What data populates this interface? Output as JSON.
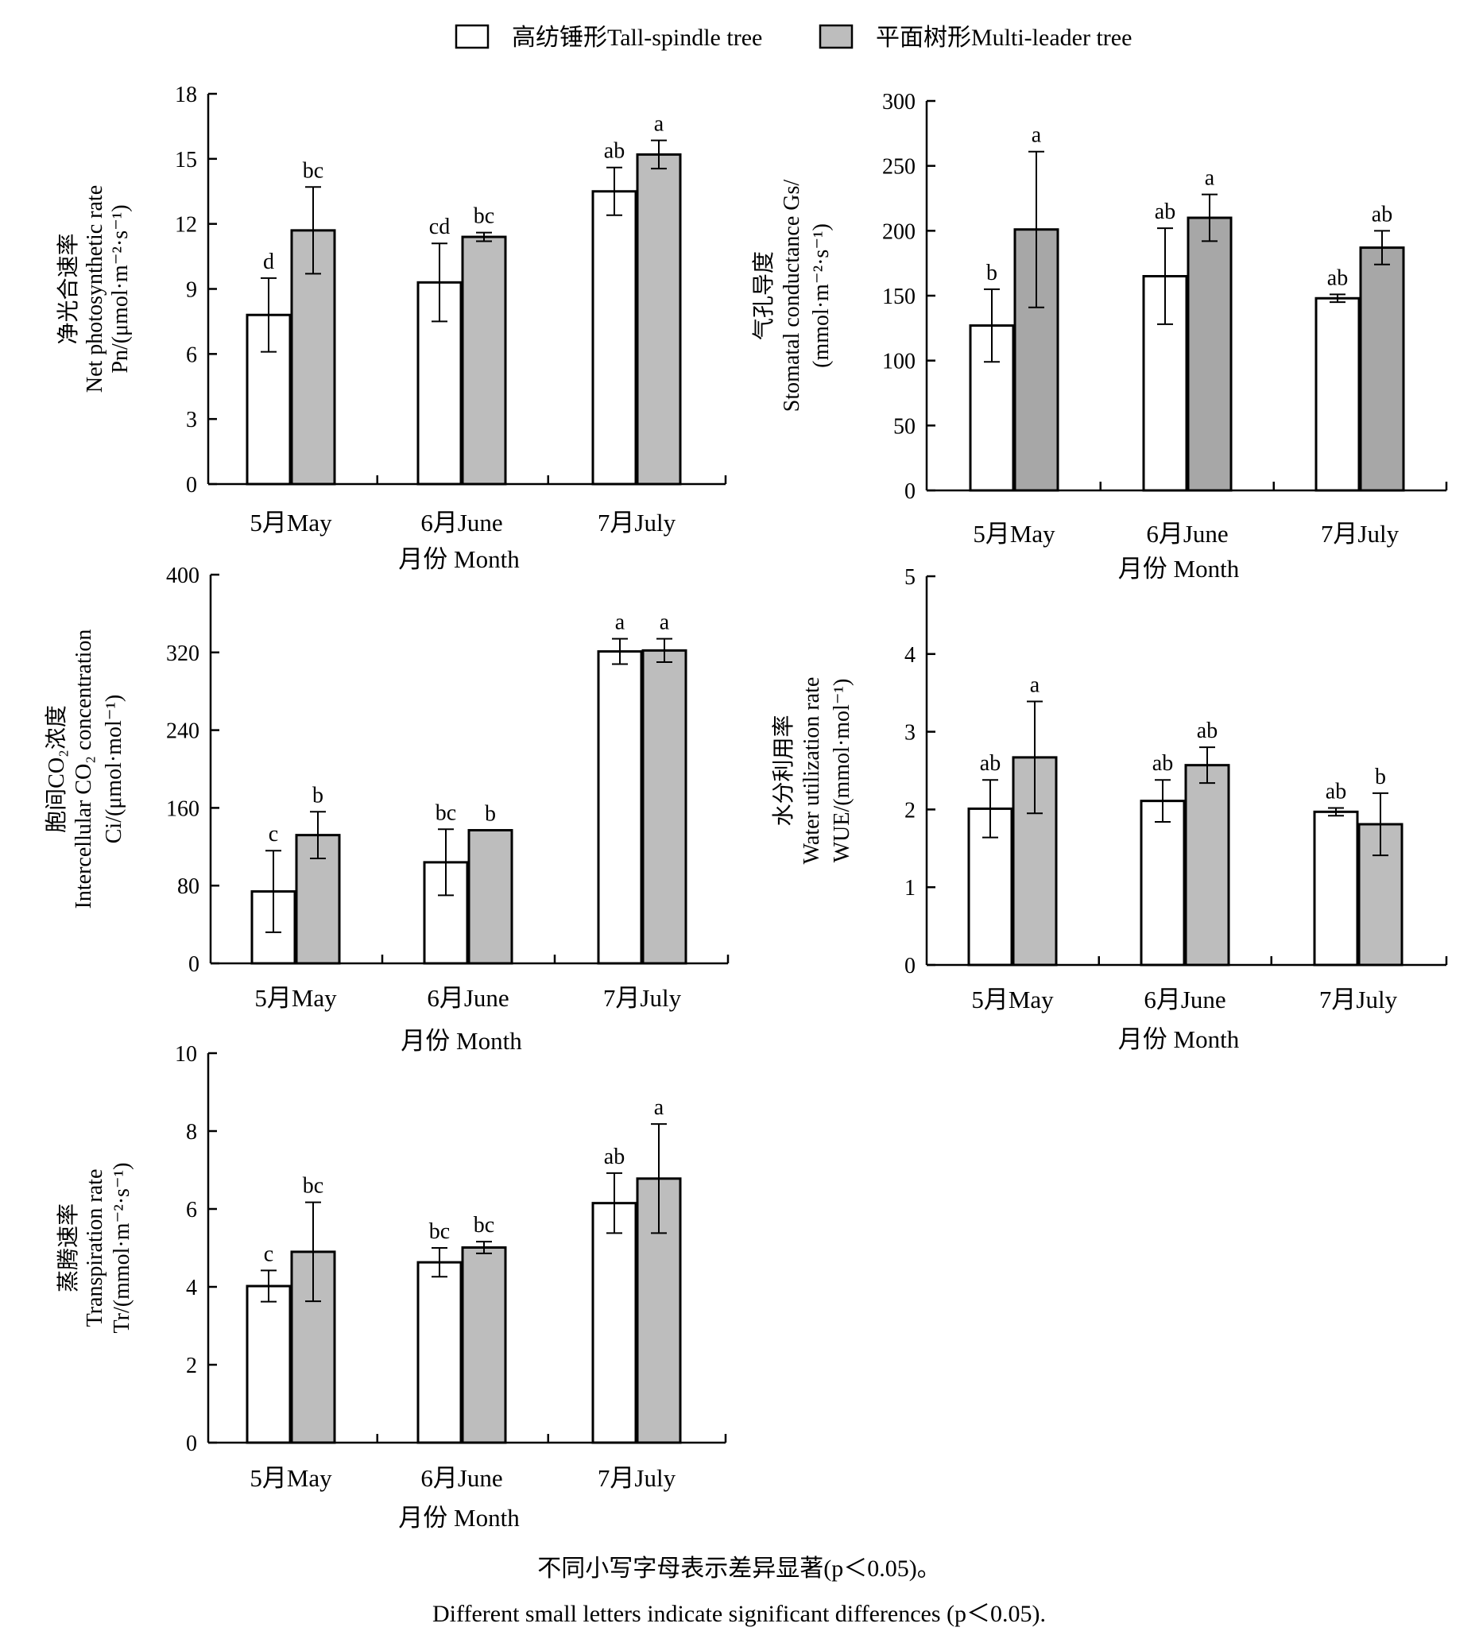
{
  "legend": {
    "items": [
      {
        "label": "高纺锤形Tall-spindle tree",
        "fill": "#ffffff"
      },
      {
        "label": "平面树形Multi-leader tree",
        "fill": "#bdbdbd"
      }
    ]
  },
  "colors": {
    "tall": "#ffffff",
    "multi_light": "#bdbdbd",
    "multi_dark": "#a7a7a7",
    "stroke": "#000000"
  },
  "footnote": {
    "cn": "不同小写字母表示差异显著(p＜0.05)。",
    "en": "Different small letters indicate significant differences (p＜0.05)."
  },
  "chart_data": [
    {
      "id": "pn",
      "type": "bar",
      "ylabel_cn": "净光合速率",
      "ylabel_en": "Net photosynthetic rate",
      "ylabel_unit": "Pn/(μmol·m⁻²·s⁻¹)",
      "xlabel": "月份 Month",
      "categories": [
        "5月May",
        "6月June",
        "7月July"
      ],
      "ylim": [
        0,
        18
      ],
      "yticks": [
        "0",
        "3",
        "6",
        "9",
        "12",
        "15",
        "18"
      ],
      "series": [
        {
          "name": "高纺锤形Tall-spindle tree",
          "values": [
            7.8,
            9.3,
            13.5
          ],
          "errors": [
            1.7,
            1.8,
            1.1
          ],
          "letters": [
            "d",
            "cd",
            "ab"
          ]
        },
        {
          "name": "平面树形Multi-leader tree",
          "values": [
            11.7,
            11.4,
            15.2
          ],
          "errors": [
            2.0,
            0.2,
            0.65
          ],
          "letters": [
            "bc",
            "bc",
            "a"
          ]
        }
      ]
    },
    {
      "id": "gs",
      "type": "bar",
      "ylabel_cn": "气孔导度",
      "ylabel_en": "Stomatal conductance Gs/",
      "ylabel_unit": "(mmol·m⁻²·s⁻¹)",
      "xlabel": "月份 Month",
      "categories": [
        "5月May",
        "6月June",
        "7月July"
      ],
      "ylim": [
        0,
        300
      ],
      "yticks": [
        "0",
        "50",
        "100",
        "150",
        "200",
        "250",
        "300"
      ],
      "series": [
        {
          "name": "高纺锤形Tall-spindle tree",
          "values": [
            127,
            165,
            148
          ],
          "errors": [
            28,
            37,
            3
          ],
          "letters": [
            "b",
            "ab",
            "ab"
          ]
        },
        {
          "name": "平面树形Multi-leader tree",
          "values": [
            201,
            210,
            187
          ],
          "errors": [
            60,
            18,
            13
          ],
          "letters": [
            "a",
            "a",
            "ab"
          ]
        }
      ]
    },
    {
      "id": "ci",
      "type": "bar",
      "ylabel_cn": "胞间CO₂浓度",
      "ylabel_en": "Intercellular CO₂ concentration",
      "ylabel_unit": "Ci/(μmol·mol⁻¹)",
      "xlabel": "月份 Month",
      "categories": [
        "5月May",
        "6月June",
        "7月July"
      ],
      "ylim": [
        0,
        400
      ],
      "yticks": [
        "0",
        "80",
        "160",
        "240",
        "320",
        "400"
      ],
      "series": [
        {
          "name": "高纺锤形Tall-spindle tree",
          "values": [
            74,
            104,
            321
          ],
          "errors": [
            42,
            34,
            13
          ],
          "letters": [
            "c",
            "bc",
            "a"
          ]
        },
        {
          "name": "平面树形Multi-leader tree",
          "values": [
            132,
            137,
            322
          ],
          "errors": [
            24,
            0,
            12
          ],
          "letters": [
            "b",
            "b",
            "a"
          ]
        }
      ]
    },
    {
      "id": "wue",
      "type": "bar",
      "ylabel_cn": "水分利用率",
      "ylabel_en": "Water utilization rate",
      "ylabel_unit": "WUE/(mmol·mol⁻¹)",
      "xlabel": "月份 Month",
      "categories": [
        "5月May",
        "6月June",
        "7月July"
      ],
      "ylim": [
        0,
        5
      ],
      "yticks": [
        "0",
        "1",
        "2",
        "3",
        "4",
        "5"
      ],
      "series": [
        {
          "name": "高纺锤形Tall-spindle tree",
          "values": [
            2.01,
            2.11,
            1.97
          ],
          "errors": [
            0.37,
            0.27,
            0.05
          ],
          "letters": [
            "ab",
            "ab",
            "ab"
          ]
        },
        {
          "name": "平面树形Multi-leader tree",
          "values": [
            2.67,
            2.57,
            1.81
          ],
          "errors": [
            0.72,
            0.23,
            0.4
          ],
          "letters": [
            "a",
            "ab",
            "b"
          ]
        }
      ]
    },
    {
      "id": "tr",
      "type": "bar",
      "ylabel_cn": "蒸腾速率",
      "ylabel_en": "Transpiration rate",
      "ylabel_unit": "Tr/(mmol·m⁻²·s⁻¹)",
      "xlabel": "月份 Month",
      "categories": [
        "5月May",
        "6月June",
        "7月July"
      ],
      "ylim": [
        0,
        10
      ],
      "yticks": [
        "0",
        "2",
        "4",
        "6",
        "8",
        "10"
      ],
      "series": [
        {
          "name": "高纺锤形Tall-spindle tree",
          "values": [
            4.02,
            4.63,
            6.15
          ],
          "errors": [
            0.4,
            0.37,
            0.77
          ],
          "letters": [
            "c",
            "bc",
            "ab"
          ]
        },
        {
          "name": "平面树形Multi-leader tree",
          "values": [
            4.9,
            5.01,
            6.78
          ],
          "errors": [
            1.27,
            0.15,
            1.4
          ],
          "letters": [
            "bc",
            "bc",
            "a"
          ]
        }
      ]
    }
  ]
}
